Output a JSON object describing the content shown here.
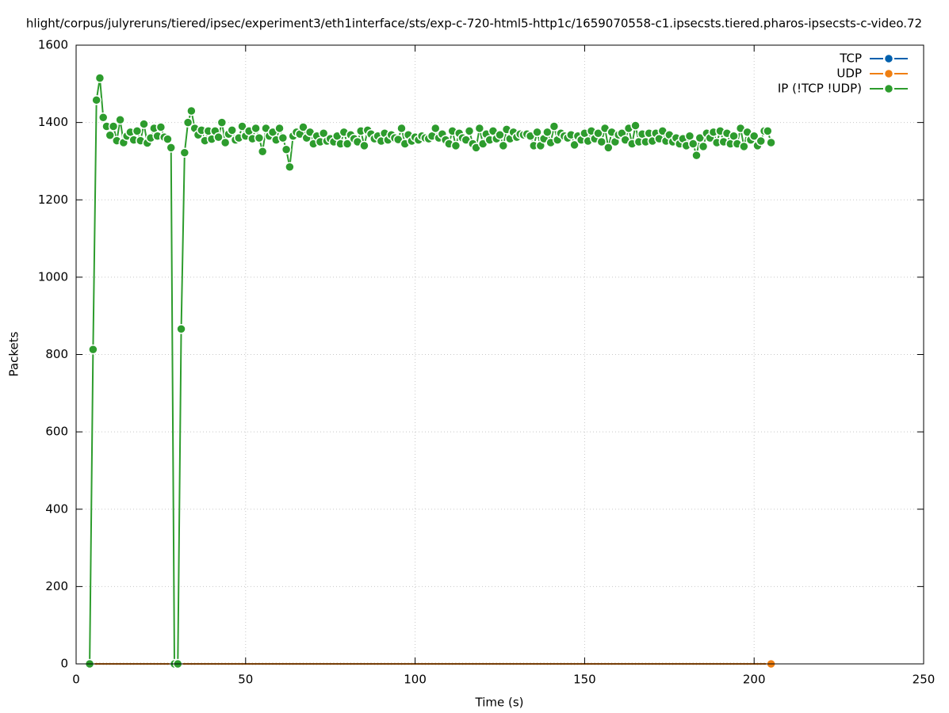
{
  "chart_data": {
    "type": "line",
    "title": "hlight/corpus/julyreruns/tiered/ipsec/experiment3/eth1interface/sts/exp-c-720-html5-http1c/1659070558-c1.ipsecsts.tiered.pharos-ipsecsts-c-video.72",
    "xlabel": "Time (s)",
    "ylabel": "Packets",
    "xlim": [
      0,
      250
    ],
    "xticks": [
      0,
      50,
      100,
      150,
      200,
      250
    ],
    "ylim": [
      0,
      1600
    ],
    "yticks": [
      0,
      200,
      400,
      600,
      800,
      1000,
      1200,
      1400,
      1600
    ],
    "grid": true,
    "legend": "upper right",
    "x": [
      4,
      5,
      6,
      7,
      8,
      9,
      10,
      11,
      12,
      13,
      14,
      15,
      16,
      17,
      18,
      19,
      20,
      21,
      22,
      23,
      24,
      25,
      26,
      27,
      28,
      29,
      30,
      31,
      32,
      33,
      34,
      35,
      36,
      37,
      38,
      39,
      40,
      41,
      42,
      43,
      44,
      45,
      46,
      47,
      48,
      49,
      50,
      51,
      52,
      53,
      54,
      55,
      56,
      57,
      58,
      59,
      60,
      61,
      62,
      63,
      64,
      65,
      66,
      67,
      68,
      69,
      70,
      71,
      72,
      73,
      74,
      75,
      76,
      77,
      78,
      79,
      80,
      81,
      82,
      83,
      84,
      85,
      86,
      87,
      88,
      89,
      90,
      91,
      92,
      93,
      94,
      95,
      96,
      97,
      98,
      99,
      100,
      101,
      102,
      103,
      104,
      105,
      106,
      107,
      108,
      109,
      110,
      111,
      112,
      113,
      114,
      115,
      116,
      117,
      118,
      119,
      120,
      121,
      122,
      123,
      124,
      125,
      126,
      127,
      128,
      129,
      130,
      131,
      132,
      133,
      134,
      135,
      136,
      137,
      138,
      139,
      140,
      141,
      142,
      143,
      144,
      145,
      146,
      147,
      148,
      149,
      150,
      151,
      152,
      153,
      154,
      155,
      156,
      157,
      158,
      159,
      160,
      161,
      162,
      163,
      164,
      165,
      166,
      167,
      168,
      169,
      170,
      171,
      172,
      173,
      174,
      175,
      176,
      177,
      178,
      179,
      180,
      181,
      182,
      183,
      184,
      185,
      186,
      187,
      188,
      189,
      190,
      191,
      192,
      193,
      194,
      195,
      196,
      197,
      198,
      199,
      200,
      201,
      202,
      203,
      204,
      205
    ],
    "series": [
      {
        "name": "TCP",
        "color": "#0060ad",
        "values": [
          0,
          0,
          0,
          0,
          0,
          0,
          0,
          0,
          0,
          0,
          0,
          0,
          0,
          0,
          0,
          0,
          0,
          0,
          0,
          0,
          0,
          0,
          0,
          0,
          0,
          0,
          0,
          0,
          0,
          0,
          0,
          0,
          0,
          0,
          0,
          0,
          0,
          0,
          0,
          0,
          0,
          0,
          0,
          0,
          0,
          0,
          0,
          0,
          0,
          0,
          0,
          0,
          0,
          0,
          0,
          0,
          0,
          0,
          0,
          0,
          0,
          0,
          0,
          0,
          0,
          0,
          0,
          0,
          0,
          0,
          0,
          0,
          0,
          0,
          0,
          0,
          0,
          0,
          0,
          0,
          0,
          0,
          0,
          0,
          0,
          0,
          0,
          0,
          0,
          0,
          0,
          0,
          0,
          0,
          0,
          0,
          0,
          0,
          0,
          0,
          0,
          0,
          0,
          0,
          0,
          0,
          0,
          0,
          0,
          0,
          0,
          0,
          0,
          0,
          0,
          0,
          0,
          0,
          0,
          0,
          0,
          0,
          0,
          0,
          0,
          0,
          0,
          0,
          0,
          0,
          0,
          0,
          0,
          0,
          0,
          0,
          0,
          0,
          0,
          0,
          0,
          0,
          0,
          0,
          0,
          0,
          0,
          0,
          0,
          0,
          0,
          0,
          0,
          0,
          0,
          0,
          0,
          0,
          0,
          0,
          0,
          0,
          0,
          0,
          0,
          0,
          0,
          0,
          0,
          0,
          0,
          0,
          0,
          0,
          0,
          0,
          0,
          0,
          0,
          0,
          0,
          0,
          0,
          0,
          0,
          0,
          0,
          0,
          0,
          0,
          0,
          0,
          0,
          0,
          0,
          0,
          0,
          0,
          0,
          0,
          0,
          0
        ]
      },
      {
        "name": "UDP",
        "color": "#ef7f12",
        "values": [
          0,
          0,
          0,
          0,
          0,
          0,
          0,
          0,
          0,
          0,
          0,
          0,
          0,
          0,
          0,
          0,
          0,
          0,
          0,
          0,
          0,
          0,
          0,
          0,
          0,
          0,
          0,
          0,
          0,
          0,
          0,
          0,
          0,
          0,
          0,
          0,
          0,
          0,
          0,
          0,
          0,
          0,
          0,
          0,
          0,
          0,
          0,
          0,
          0,
          0,
          0,
          0,
          0,
          0,
          0,
          0,
          0,
          0,
          0,
          0,
          0,
          0,
          0,
          0,
          0,
          0,
          0,
          0,
          0,
          0,
          0,
          0,
          0,
          0,
          0,
          0,
          0,
          0,
          0,
          0,
          0,
          0,
          0,
          0,
          0,
          0,
          0,
          0,
          0,
          0,
          0,
          0,
          0,
          0,
          0,
          0,
          0,
          0,
          0,
          0,
          0,
          0,
          0,
          0,
          0,
          0,
          0,
          0,
          0,
          0,
          0,
          0,
          0,
          0,
          0,
          0,
          0,
          0,
          0,
          0,
          0,
          0,
          0,
          0,
          0,
          0,
          0,
          0,
          0,
          0,
          0,
          0,
          0,
          0,
          0,
          0,
          0,
          0,
          0,
          0,
          0,
          0,
          0,
          0,
          0,
          0,
          0,
          0,
          0,
          0,
          0,
          0,
          0,
          0,
          0,
          0,
          0,
          0,
          0,
          0,
          0,
          0,
          0,
          0,
          0,
          0,
          0,
          0,
          0,
          0,
          0,
          0,
          0,
          0,
          0,
          0,
          0,
          0,
          0,
          0,
          0,
          0,
          0,
          0,
          0,
          0,
          0,
          0,
          0,
          0,
          0,
          0,
          0,
          0,
          0,
          0,
          0,
          0,
          0,
          0,
          0,
          0
        ]
      },
      {
        "name": "IP (!TCP  !UDP)",
        "color": "#2d9c2d",
        "values": [
          0,
          813,
          1458,
          1515,
          1413,
          1390,
          1367,
          1390,
          1353,
          1407,
          1348,
          1365,
          1375,
          1355,
          1378,
          1353,
          1396,
          1347,
          1360,
          1385,
          1365,
          1388,
          1362,
          1357,
          1335,
          0,
          0,
          866,
          1322,
          1400,
          1430,
          1385,
          1368,
          1380,
          1353,
          1378,
          1357,
          1378,
          1362,
          1400,
          1348,
          1370,
          1380,
          1355,
          1360,
          1390,
          1365,
          1378,
          1358,
          1385,
          1360,
          1325,
          1385,
          1365,
          1375,
          1355,
          1385,
          1360,
          1330,
          1285,
          1365,
          1375,
          1370,
          1388,
          1360,
          1375,
          1345,
          1365,
          1350,
          1372,
          1352,
          1358,
          1350,
          1365,
          1345,
          1375,
          1345,
          1368,
          1358,
          1350,
          1378,
          1340,
          1380,
          1370,
          1358,
          1365,
          1352,
          1372,
          1355,
          1368,
          1360,
          1356,
          1385,
          1345,
          1368,
          1352,
          1362,
          1355,
          1365,
          1360,
          1358,
          1365,
          1385,
          1360,
          1370,
          1355,
          1345,
          1378,
          1340,
          1372,
          1360,
          1355,
          1378,
          1345,
          1335,
          1385,
          1345,
          1370,
          1355,
          1378,
          1358,
          1368,
          1340,
          1382,
          1358,
          1375,
          1362,
          1370,
          1368,
          1370,
          1365,
          1340,
          1375,
          1340,
          1358,
          1375,
          1348,
          1390,
          1355,
          1372,
          1365,
          1360,
          1368,
          1342,
          1365,
          1355,
          1372,
          1352,
          1378,
          1358,
          1372,
          1350,
          1385,
          1335,
          1375,
          1350,
          1368,
          1372,
          1355,
          1385,
          1345,
          1392,
          1350,
          1370,
          1350,
          1372,
          1352,
          1372,
          1358,
          1378,
          1352,
          1368,
          1350,
          1360,
          1345,
          1358,
          1340,
          1365,
          1345,
          1315,
          1360,
          1338,
          1372,
          1360,
          1375,
          1348,
          1378,
          1350,
          1372,
          1345,
          1365,
          1345,
          1385,
          1338,
          1375,
          1355,
          1365,
          1340,
          1352,
          1378,
          1378,
          1348
        ]
      }
    ]
  }
}
